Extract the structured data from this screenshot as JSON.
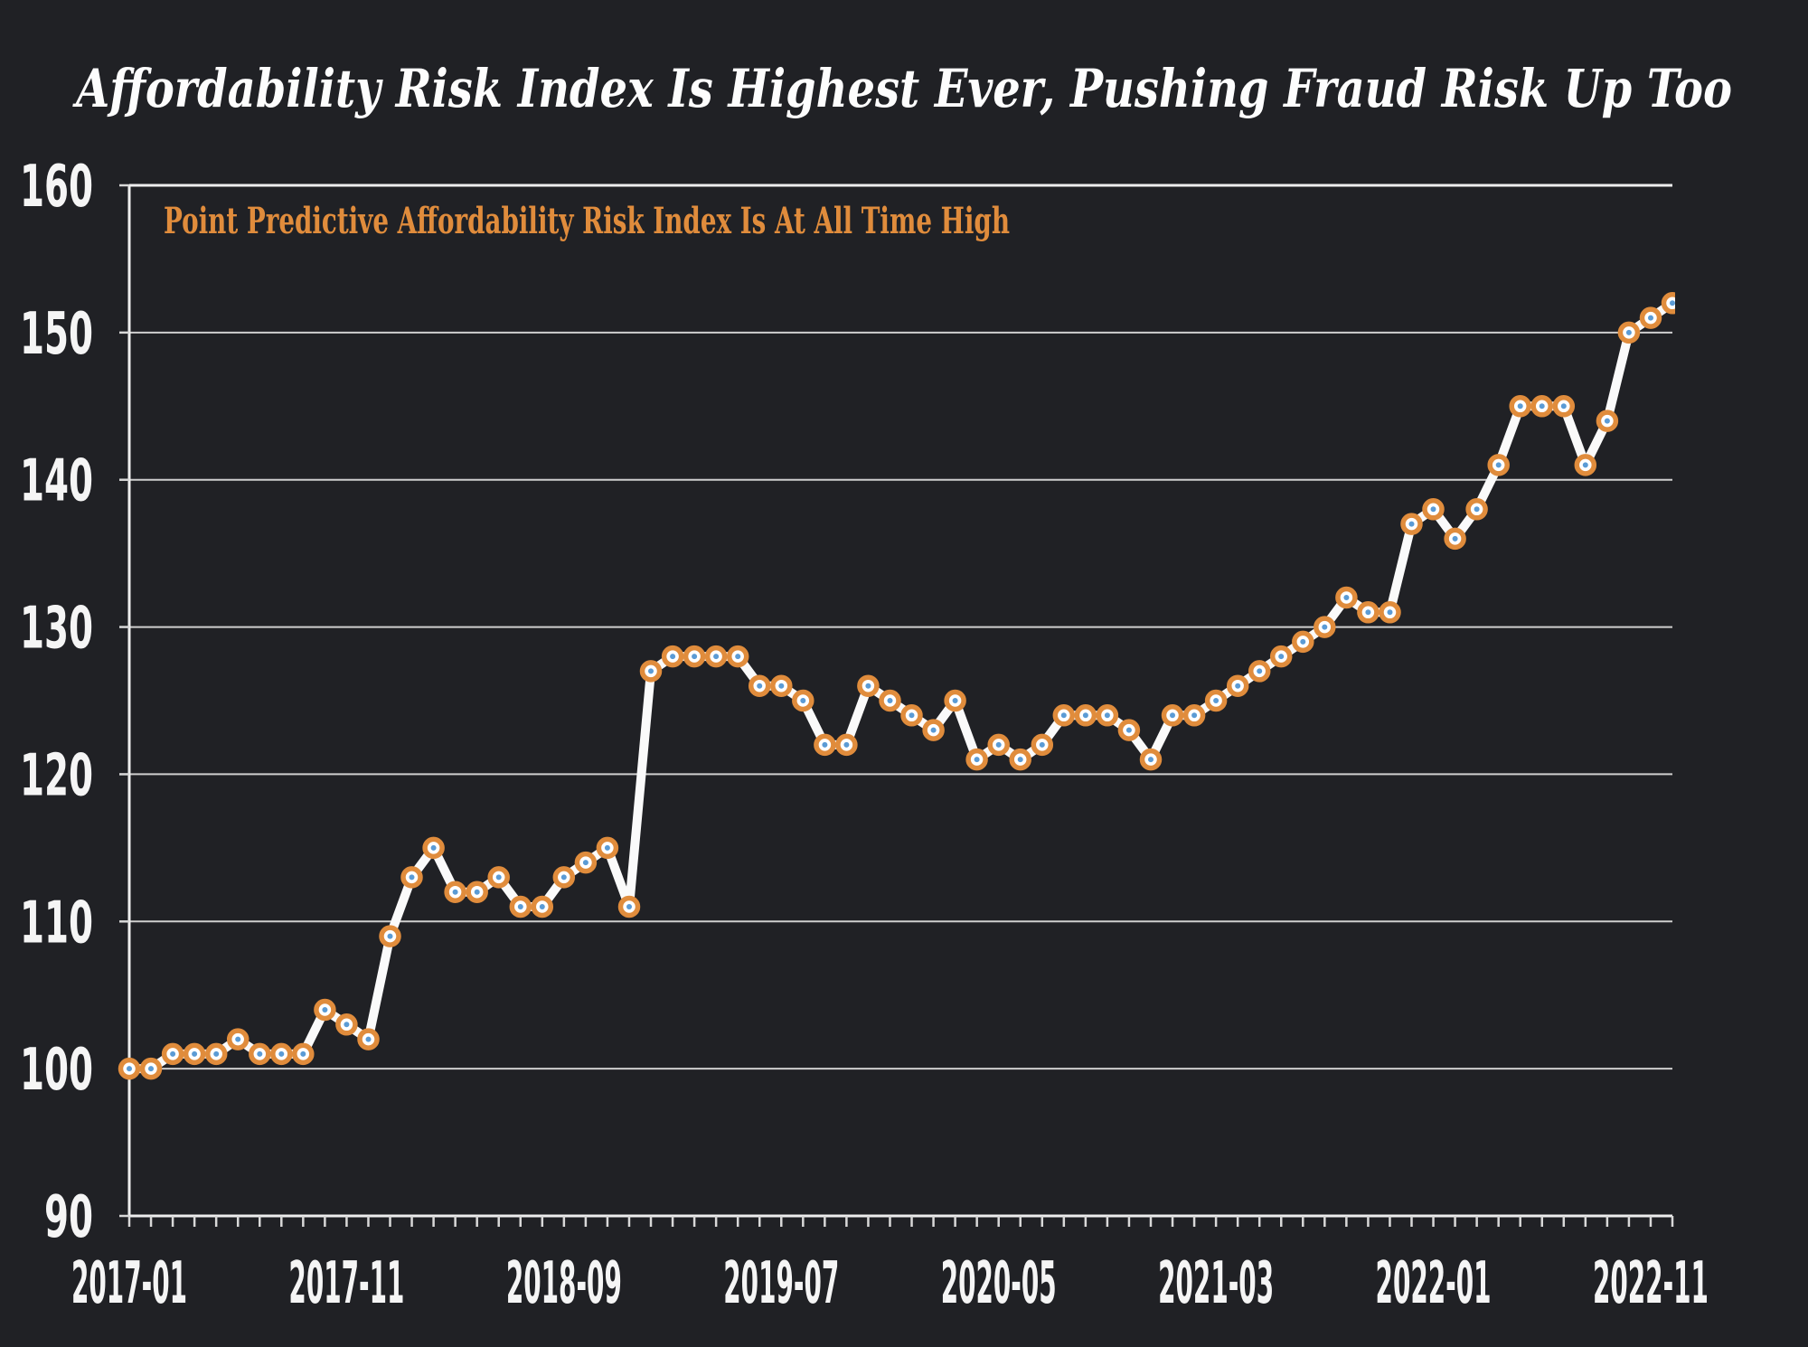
{
  "figure": {
    "title": "Affordability Risk Index Is Highest Ever, Pushing Fraud Risk Up Too",
    "annotation": "Point Predictive Affordability Risk Index Is At All Time High"
  },
  "colors": {
    "background": "#202125",
    "title_text": "#fdfdfd",
    "annotation_text": "#e08c3c",
    "axis_label_text": "#f5f5f5",
    "gridline": "#cfcfcf",
    "series_line": "#fafafa",
    "marker_ring": "#e08c3c",
    "marker_fill": "#ffffff",
    "marker_center_dot": "#5b9bd5"
  },
  "chart_data": {
    "type": "line",
    "title": "Affordability Risk Index Is Highest Ever, Pushing Fraud Risk Up Too",
    "annotation": "Point Predictive Affordability Risk Index Is At All Time High",
    "xlabel": "",
    "ylabel": "",
    "ylim": [
      90,
      160
    ],
    "yticks": [
      90,
      100,
      110,
      120,
      130,
      140,
      150,
      160
    ],
    "grid": "horizontal",
    "legend": "none",
    "marker": "circle-ring-with-dot",
    "xtick_labels": [
      "2017-01",
      "2017-11",
      "2018-09",
      "2019-07",
      "2020-05",
      "2021-03",
      "2022-01",
      "2022-11"
    ],
    "xtick_indices": [
      0,
      10,
      20,
      30,
      40,
      50,
      60,
      70
    ],
    "x": [
      "2017-01",
      "2017-02",
      "2017-03",
      "2017-04",
      "2017-05",
      "2017-06",
      "2017-07",
      "2017-08",
      "2017-09",
      "2017-10",
      "2017-11",
      "2017-12",
      "2018-01",
      "2018-02",
      "2018-03",
      "2018-04",
      "2018-05",
      "2018-06",
      "2018-07",
      "2018-08",
      "2018-09",
      "2018-10",
      "2018-11",
      "2018-12",
      "2019-01",
      "2019-02",
      "2019-03",
      "2019-04",
      "2019-05",
      "2019-06",
      "2019-07",
      "2019-08",
      "2019-09",
      "2019-10",
      "2019-11",
      "2019-12",
      "2020-01",
      "2020-02",
      "2020-03",
      "2020-04",
      "2020-05",
      "2020-06",
      "2020-07",
      "2020-08",
      "2020-09",
      "2020-10",
      "2020-11",
      "2020-12",
      "2021-01",
      "2021-02",
      "2021-03",
      "2021-04",
      "2021-05",
      "2021-06",
      "2021-07",
      "2021-08",
      "2021-09",
      "2021-10",
      "2021-11",
      "2021-12",
      "2022-01",
      "2022-02",
      "2022-03",
      "2022-04",
      "2022-05",
      "2022-06",
      "2022-07",
      "2022-08",
      "2022-09",
      "2022-10",
      "2022-11",
      "2022-12"
    ],
    "values": [
      100,
      100,
      101,
      101,
      101,
      102,
      101,
      101,
      101,
      104,
      103,
      102,
      109,
      113,
      115,
      112,
      112,
      113,
      111,
      111,
      113,
      114,
      115,
      111,
      127,
      128,
      128,
      128,
      128,
      126,
      126,
      125,
      122,
      122,
      126,
      125,
      124,
      123,
      125,
      121,
      122,
      121,
      122,
      124,
      124,
      124,
      123,
      121,
      124,
      124,
      125,
      126,
      127,
      128,
      129,
      130,
      132,
      131,
      131,
      137,
      138,
      136,
      138,
      141,
      145,
      145,
      145,
      141,
      144,
      150,
      151,
      152
    ]
  }
}
